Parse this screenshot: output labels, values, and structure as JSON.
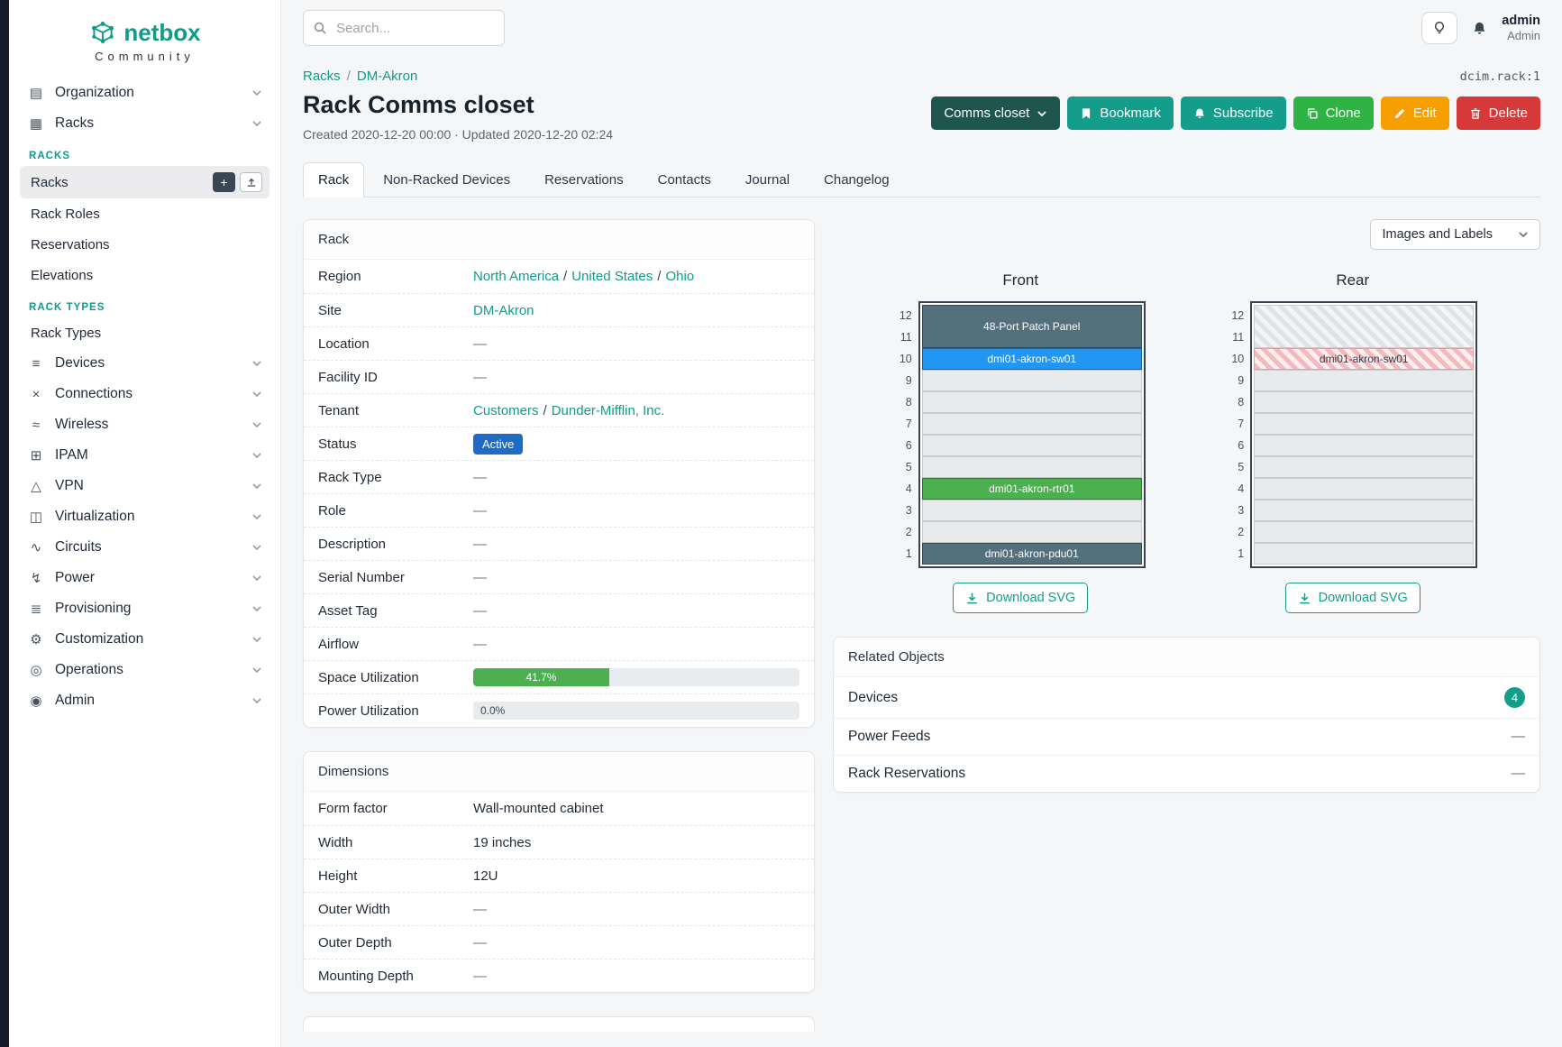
{
  "colors": {
    "teal": "#0f9b8c",
    "teal-button": "#149d8b",
    "dark-action": "#1e564f",
    "green": "#2fb344",
    "orange": "#f59f00",
    "red": "#d63939",
    "blue-badge": "#206bc4",
    "progress-green": "#4caf50"
  },
  "icon_glyphs": {
    "organization": "▤",
    "racks": "▦",
    "devices": "≡",
    "connections": "×",
    "wireless": "≈",
    "ipam": "⊞",
    "vpn": "△",
    "virtualization": "◫",
    "circuits": "∿",
    "power": "↯",
    "provisioning": "≣",
    "customization": "⚙",
    "operations": "◎",
    "admin": "◉"
  },
  "brand": {
    "name": "netbox",
    "subtitle": "Community"
  },
  "topbar": {
    "search_placeholder": "Search...",
    "user_name": "admin",
    "user_role": "Admin"
  },
  "sidebar": {
    "top_groups": [
      {
        "label": "Organization",
        "icon": "organization"
      },
      {
        "label": "Racks",
        "icon": "racks"
      }
    ],
    "sections": [
      {
        "title": "RACKS",
        "items": [
          {
            "label": "Racks",
            "active": true,
            "buttons": [
              "add",
              "import"
            ]
          },
          {
            "label": "Rack Roles"
          },
          {
            "label": "Reservations"
          },
          {
            "label": "Elevations"
          }
        ]
      },
      {
        "title": "RACK TYPES",
        "items": [
          {
            "label": "Rack Types"
          }
        ]
      }
    ],
    "groups": [
      {
        "label": "Devices",
        "icon": "devices"
      },
      {
        "label": "Connections",
        "icon": "connections"
      },
      {
        "label": "Wireless",
        "icon": "wireless"
      },
      {
        "label": "IPAM",
        "icon": "ipam"
      },
      {
        "label": "VPN",
        "icon": "vpn"
      },
      {
        "label": "Virtualization",
        "icon": "virtualization"
      },
      {
        "label": "Circuits",
        "icon": "circuits"
      },
      {
        "label": "Power",
        "icon": "power"
      },
      {
        "label": "Provisioning",
        "icon": "provisioning"
      },
      {
        "label": "Customization",
        "icon": "customization"
      },
      {
        "label": "Operations",
        "icon": "operations"
      },
      {
        "label": "Admin",
        "icon": "admin"
      }
    ]
  },
  "page": {
    "breadcrumb": [
      "Racks",
      "DM-Akron"
    ],
    "object_id": "dcim.rack:1",
    "title": "Rack Comms closet",
    "meta": "Created 2020-12-20 00:00 · Updated 2020-12-20 02:24",
    "actions": [
      {
        "label": "Comms closet",
        "style": "dark",
        "icon": "chevron-down",
        "icon_after": true,
        "name": "rack-selector-dropdown"
      },
      {
        "label": "Bookmark",
        "style": "teal",
        "icon": "bookmark",
        "name": "bookmark-button"
      },
      {
        "label": "Subscribe",
        "style": "teal",
        "icon": "bell",
        "name": "subscribe-button"
      },
      {
        "label": "Clone",
        "style": "green",
        "icon": "clone",
        "name": "clone-button"
      },
      {
        "label": "Edit",
        "style": "orange",
        "icon": "edit",
        "name": "edit-button"
      },
      {
        "label": "Delete",
        "style": "red",
        "icon": "trash",
        "name": "delete-button"
      }
    ],
    "tabs": [
      {
        "label": "Rack",
        "active": true
      },
      {
        "label": "Non-Racked Devices"
      },
      {
        "label": "Reservations"
      },
      {
        "label": "Contacts"
      },
      {
        "label": "Journal"
      },
      {
        "label": "Changelog"
      }
    ]
  },
  "rack_card": {
    "title": "Rack",
    "rows": [
      {
        "label": "Region",
        "links": [
          "North America",
          "United States",
          "Ohio"
        ]
      },
      {
        "label": "Site",
        "links": [
          "DM-Akron"
        ]
      },
      {
        "label": "Location",
        "dash": "—"
      },
      {
        "label": "Facility ID",
        "dash": "—"
      },
      {
        "label": "Tenant",
        "links": [
          "Customers",
          "Dunder-Mifflin, Inc."
        ]
      },
      {
        "label": "Status",
        "badge": "Active"
      },
      {
        "label": "Rack Type",
        "dash": "—"
      },
      {
        "label": "Role",
        "dash": "—"
      },
      {
        "label": "Description",
        "dash": "—"
      },
      {
        "label": "Serial Number",
        "dash": "—"
      },
      {
        "label": "Asset Tag",
        "dash": "—"
      },
      {
        "label": "Airflow",
        "dash": "—"
      },
      {
        "label": "Space Utilization",
        "bar": {
          "percent": 41.7,
          "text": "41.7%"
        }
      },
      {
        "label": "Power Utilization",
        "bar": {
          "percent": 0,
          "text": "0.0%"
        }
      }
    ]
  },
  "dimensions_card": {
    "title": "Dimensions",
    "rows": [
      {
        "label": "Form factor",
        "value": "Wall-mounted cabinet"
      },
      {
        "label": "Width",
        "value": "19 inches"
      },
      {
        "label": "Height",
        "value": "12U"
      },
      {
        "label": "Outer Width",
        "dash": "—"
      },
      {
        "label": "Outer Depth",
        "dash": "—"
      },
      {
        "label": "Mounting Depth",
        "dash": "—"
      }
    ]
  },
  "elevations": {
    "view_button": "Images and Labels",
    "front": {
      "title": "Front",
      "units": 12,
      "download_label": "Download SVG",
      "slots": [
        {
          "kind": "device",
          "span": 2,
          "label": "48-Port Patch Panel",
          "color": "#54707c"
        },
        {
          "kind": "device",
          "span": 1,
          "label": "dmi01-akron-sw01",
          "color": "#2196f3"
        },
        {
          "kind": "empty",
          "span": 1
        },
        {
          "kind": "empty",
          "span": 1
        },
        {
          "kind": "empty",
          "span": 1
        },
        {
          "kind": "empty",
          "span": 1
        },
        {
          "kind": "empty",
          "span": 1
        },
        {
          "kind": "device",
          "span": 1,
          "label": "dmi01-akron-rtr01",
          "color": "#4caf50"
        },
        {
          "kind": "empty",
          "span": 1
        },
        {
          "kind": "empty",
          "span": 1
        },
        {
          "kind": "device",
          "span": 1,
          "label": "dmi01-akron-pdu01",
          "color": "#54707c"
        }
      ]
    },
    "rear": {
      "title": "Rear",
      "units": 12,
      "download_label": "Download SVG",
      "slots": [
        {
          "kind": "hatch",
          "span": 2,
          "stripe1": "#dfe3e6",
          "stripe2": "#f2f4f5"
        },
        {
          "kind": "hatch",
          "span": 1,
          "label": "dmi01-akron-sw01",
          "stripe1": "#f4b9bd",
          "stripe2": "#fdf0f1"
        },
        {
          "kind": "empty",
          "span": 1
        },
        {
          "kind": "empty",
          "span": 1
        },
        {
          "kind": "empty",
          "span": 1
        },
        {
          "kind": "empty",
          "span": 1
        },
        {
          "kind": "empty",
          "span": 1
        },
        {
          "kind": "empty",
          "span": 1
        },
        {
          "kind": "empty",
          "span": 1
        },
        {
          "kind": "empty",
          "span": 1
        },
        {
          "kind": "empty",
          "span": 1
        }
      ]
    }
  },
  "related": {
    "title": "Related Objects",
    "rows": [
      {
        "label": "Devices",
        "count": "4"
      },
      {
        "label": "Power Feeds",
        "dash": "—"
      },
      {
        "label": "Rack Reservations",
        "dash": "—"
      }
    ]
  }
}
